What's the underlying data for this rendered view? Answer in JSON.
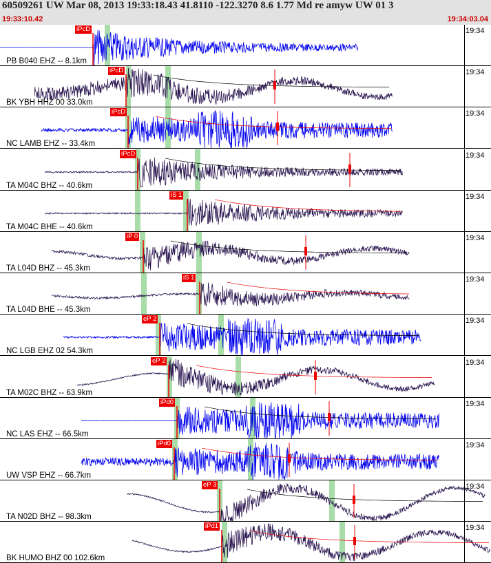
{
  "header": {
    "title": "60509261 UW Mar 08, 2013 19:33:18.43   41.8110 -122.3270  8.6 1.77 Md re amyw UW 01   3",
    "start_time": "19:33:10.42",
    "end_time": "19:34:03.04"
  },
  "colors": {
    "header_bg": "#e2e2e2",
    "blue_trace": "#0000ee",
    "dark_trace": "#2a1650",
    "pick": "#ee0000",
    "window": "#a8dca8"
  },
  "panels": [
    {
      "label": "PB B040 EHZ -- 8.1km",
      "time": "19:34",
      "pick": "iPcD"
    },
    {
      "label": "BK YBH HHZ 00 33.0km",
      "time": "19:34",
      "pick": "iPcD"
    },
    {
      "label": "NC LAMB EHZ -- 33.4km",
      "time": "19:34",
      "pick": "iPcD"
    },
    {
      "label": "TA M04C BHZ -- 40.6km",
      "time": "19:34",
      "pick": "iPcD"
    },
    {
      "label": "TA M04C BHE -- 40.6km",
      "time": "19:34",
      "pick": "iS 1"
    },
    {
      "label": "TA L04D BHZ -- 45.3km",
      "time": "19:34",
      "pick": "iP 0"
    },
    {
      "label": "TA L04D BHE -- 45.3km",
      "time": "19:34",
      "pick": "iS 1"
    },
    {
      "label": "NC LGB EHZ 02 54.3km",
      "time": "19:34",
      "pick": "eP 2"
    },
    {
      "label": "TA M02C BHZ -- 63.9km",
      "time": "19:34",
      "pick": "eP 2"
    },
    {
      "label": "NC LAS EHZ -- 66.5km",
      "time": "19:34",
      "pick": "iPd0"
    },
    {
      "label": "UW VSP EHZ -- 66.7km",
      "time": "19:34",
      "pick": "iPd0"
    },
    {
      "label": "TA N02D BHZ -- 98.3km",
      "time": "19:34",
      "pick": "eP 3"
    },
    {
      "label": "BK HUMO BHZ 00 102.6km",
      "time": "19:34",
      "pick": "iPd1"
    }
  ]
}
